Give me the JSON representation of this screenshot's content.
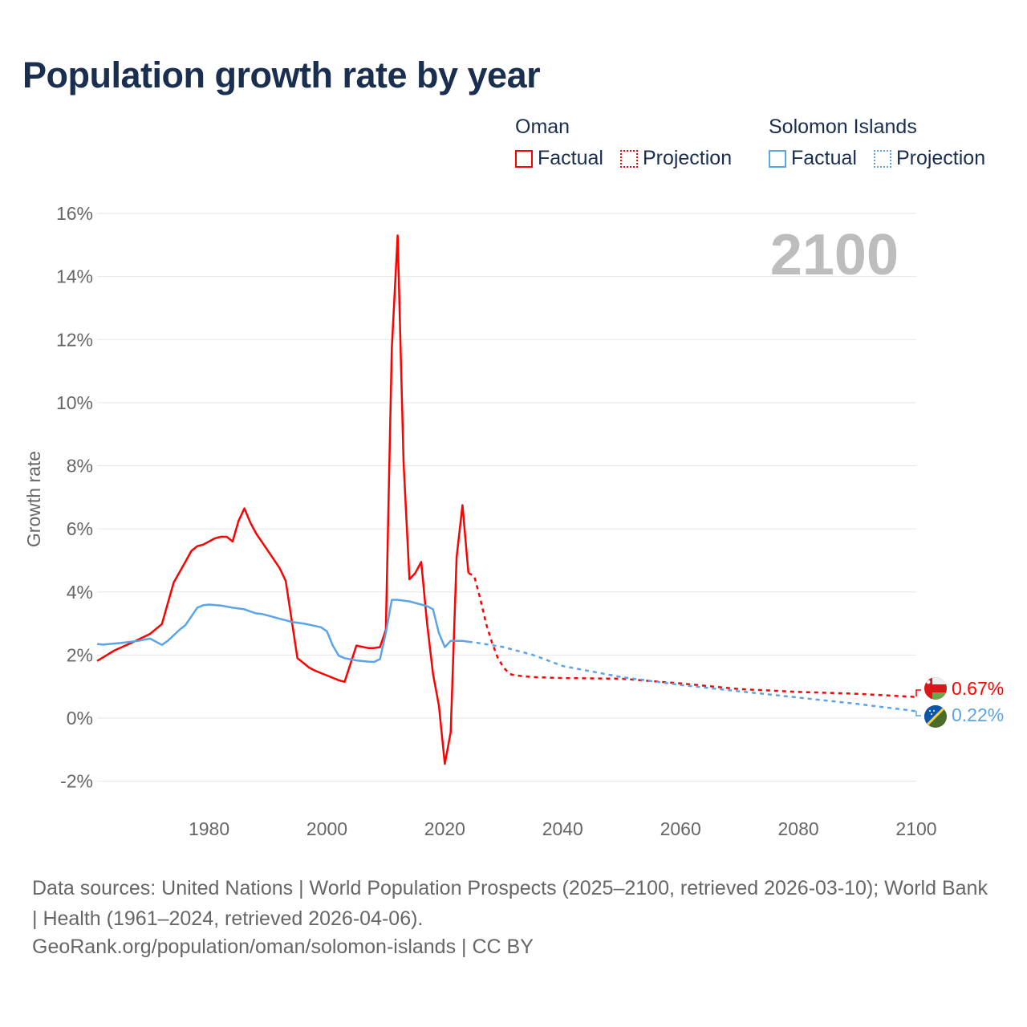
{
  "title": "Population growth rate by year",
  "legend": {
    "groups": [
      {
        "name": "Oman",
        "color": "#ff0000",
        "factual": "Factual",
        "projection": "Projection"
      },
      {
        "name": "Solomon Islands",
        "color": "#5ba4e8",
        "factual": "Factual",
        "projection": "Projection"
      }
    ]
  },
  "year_label": "2100",
  "end_labels": {
    "oman": "0.67%",
    "solomon": "0.22%"
  },
  "footer": {
    "sources": "Data sources: United Nations | World Population Prospects (2025–2100, retrieved 2026-03-10); World Bank | Health (1961–2024, retrieved 2026-04-06).",
    "url": "GeoRank.org/population/oman/solomon-islands | CC BY"
  },
  "chart_data": {
    "type": "line",
    "title": "Population growth rate by year",
    "xlabel": "",
    "ylabel": "Growth rate",
    "xlim": [
      1961,
      2100
    ],
    "ylim": [
      -3,
      16.5
    ],
    "xticks": [
      1980,
      2000,
      2020,
      2040,
      2060,
      2080,
      2100
    ],
    "yticks": [
      -2,
      0,
      2,
      4,
      6,
      8,
      10,
      12,
      14,
      16
    ],
    "ytick_labels": [
      "-2%",
      "0%",
      "2%",
      "4%",
      "6%",
      "8%",
      "10%",
      "12%",
      "14%",
      "16%"
    ],
    "grid": true,
    "legend_position": "top-right",
    "series": [
      {
        "name": "Oman Factual",
        "color": "#ff0000",
        "style": "solid",
        "x": [
          1961,
          1964,
          1967,
          1970,
          1972,
          1974,
          1976,
          1977,
          1978,
          1979,
          1981,
          1982,
          1983,
          1984,
          1985,
          1986,
          1987,
          1988,
          1990,
          1992,
          1993,
          1995,
          1997,
          1998,
          2000,
          2002,
          2003,
          2005,
          2007,
          2008,
          2009,
          2010,
          2011,
          2012,
          2013,
          2014,
          2015,
          2016,
          2017,
          2018,
          2019,
          2020,
          2021,
          2022,
          2023,
          2024
        ],
        "y": [
          1.81,
          2.15,
          2.4,
          2.67,
          2.98,
          4.3,
          4.96,
          5.3,
          5.45,
          5.5,
          5.7,
          5.75,
          5.75,
          5.6,
          6.25,
          6.65,
          6.2,
          5.85,
          5.3,
          4.75,
          4.35,
          1.9,
          1.6,
          1.5,
          1.35,
          1.2,
          1.15,
          2.3,
          2.22,
          2.22,
          2.25,
          2.8,
          11.7,
          15.3,
          8.1,
          4.4,
          4.6,
          4.95,
          3.0,
          1.4,
          0.4,
          -1.45,
          -0.45,
          5.1,
          6.75,
          4.6
        ]
      },
      {
        "name": "Oman Projection",
        "color": "#ff0000",
        "style": "dotted",
        "x": [
          2024,
          2025,
          2026,
          2027,
          2028,
          2029,
          2030,
          2031,
          2032,
          2035,
          2040,
          2050,
          2060,
          2070,
          2080,
          2090,
          2100
        ],
        "y": [
          4.6,
          4.5,
          3.8,
          3.0,
          2.4,
          1.9,
          1.6,
          1.4,
          1.35,
          1.3,
          1.27,
          1.25,
          1.1,
          0.92,
          0.83,
          0.77,
          0.67
        ]
      },
      {
        "name": "Solomon Islands Factual",
        "color": "#5ba4e8",
        "style": "solid",
        "x": [
          1961,
          1962,
          1965,
          1968,
          1970,
          1972,
          1973,
          1975,
          1976,
          1978,
          1979,
          1980,
          1982,
          1984,
          1986,
          1987,
          1988,
          1989,
          1990,
          1992,
          1994,
          1996,
          1998,
          1999,
          2000,
          2001,
          2002,
          2003,
          2005,
          2007,
          2008,
          2009,
          2010,
          2011,
          2012,
          2014,
          2016,
          2017,
          2018,
          2019,
          2020,
          2021,
          2022,
          2023,
          2024
        ],
        "y": [
          2.35,
          2.33,
          2.38,
          2.45,
          2.52,
          2.32,
          2.45,
          2.8,
          2.95,
          3.5,
          3.58,
          3.6,
          3.57,
          3.5,
          3.45,
          3.38,
          3.32,
          3.3,
          3.25,
          3.15,
          3.05,
          3.0,
          2.92,
          2.88,
          2.75,
          2.3,
          1.98,
          1.9,
          1.83,
          1.79,
          1.78,
          1.87,
          2.7,
          3.75,
          3.75,
          3.7,
          3.6,
          3.55,
          3.45,
          2.7,
          2.25,
          2.45,
          2.45,
          2.45,
          2.42
        ]
      },
      {
        "name": "Solomon Islands Projection",
        "color": "#5ba4e8",
        "style": "dotted",
        "x": [
          2024,
          2025,
          2030,
          2035,
          2040,
          2050,
          2060,
          2070,
          2080,
          2090,
          2100
        ],
        "y": [
          2.42,
          2.4,
          2.25,
          2.0,
          1.65,
          1.3,
          1.05,
          0.85,
          0.65,
          0.45,
          0.22
        ]
      }
    ]
  }
}
